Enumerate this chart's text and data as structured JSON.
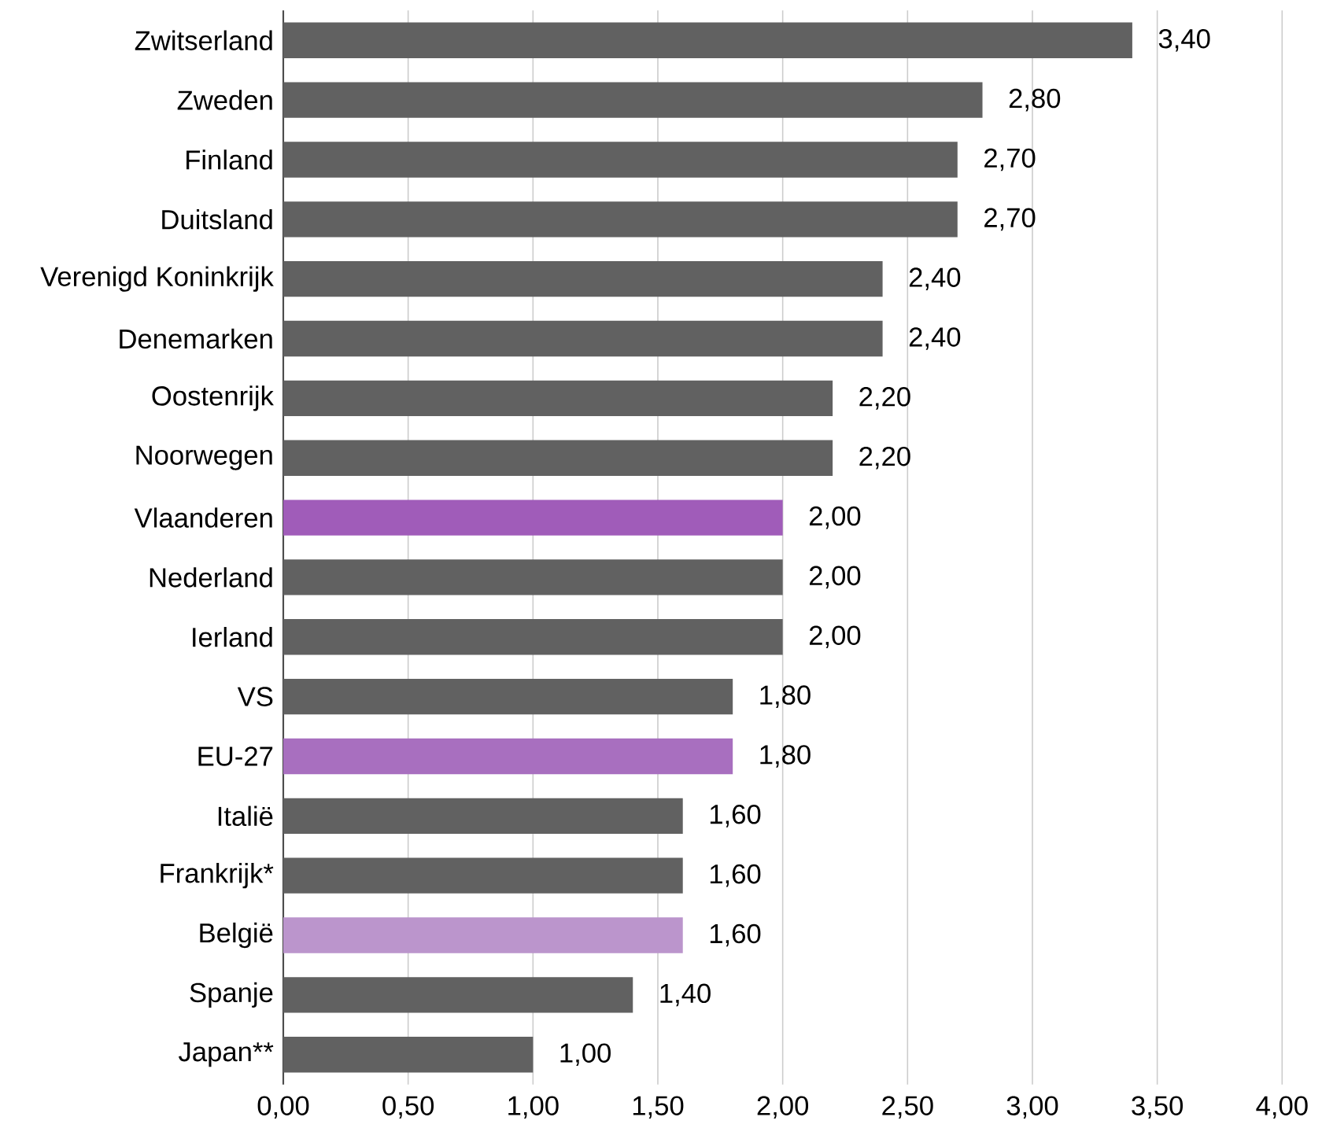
{
  "chart_data": {
    "type": "bar",
    "orientation": "horizontal",
    "categories": [
      "Zwitserland",
      "Zweden",
      "Finland",
      "Duitsland",
      "Verenigd Koninkrijk",
      "Denemarken",
      "Oostenrijk",
      "Noorwegen",
      "Vlaanderen",
      "Nederland",
      "Ierland",
      "VS",
      "EU-27",
      "Italië",
      "Frankrijk*",
      "België",
      "Spanje",
      "Japan**"
    ],
    "values": [
      3.4,
      2.8,
      2.7,
      2.7,
      2.4,
      2.4,
      2.2,
      2.2,
      2.0,
      2.0,
      2.0,
      1.8,
      1.8,
      1.6,
      1.6,
      1.6,
      1.4,
      1.0
    ],
    "value_labels": [
      "3,40",
      "2,80",
      "2,70",
      "2,70",
      "2,40",
      "2,40",
      "2,20",
      "2,20",
      "2,00",
      "2,00",
      "2,00",
      "1,80",
      "1,80",
      "1,60",
      "1,60",
      "1,60",
      "1,40",
      "1,00"
    ],
    "colors": [
      "#616161",
      "#616161",
      "#616161",
      "#616161",
      "#616161",
      "#616161",
      "#616161",
      "#616161",
      "#a05cb9",
      "#616161",
      "#616161",
      "#616161",
      "#a86fbf",
      "#616161",
      "#616161",
      "#bb95cc",
      "#616161",
      "#616161"
    ],
    "xlim": [
      0,
      4
    ],
    "xticks": [
      {
        "value": 0,
        "label": "0,00"
      },
      {
        "value": 0.5,
        "label": "0,50"
      },
      {
        "value": 1,
        "label": "1,00"
      },
      {
        "value": 1.5,
        "label": "1,50"
      },
      {
        "value": 2,
        "label": "2,00"
      },
      {
        "value": 2.5,
        "label": "2,50"
      },
      {
        "value": 3,
        "label": "3,00"
      },
      {
        "value": 3.5,
        "label": "3,50"
      },
      {
        "value": 4,
        "label": "4,00"
      }
    ],
    "grid": "x"
  }
}
